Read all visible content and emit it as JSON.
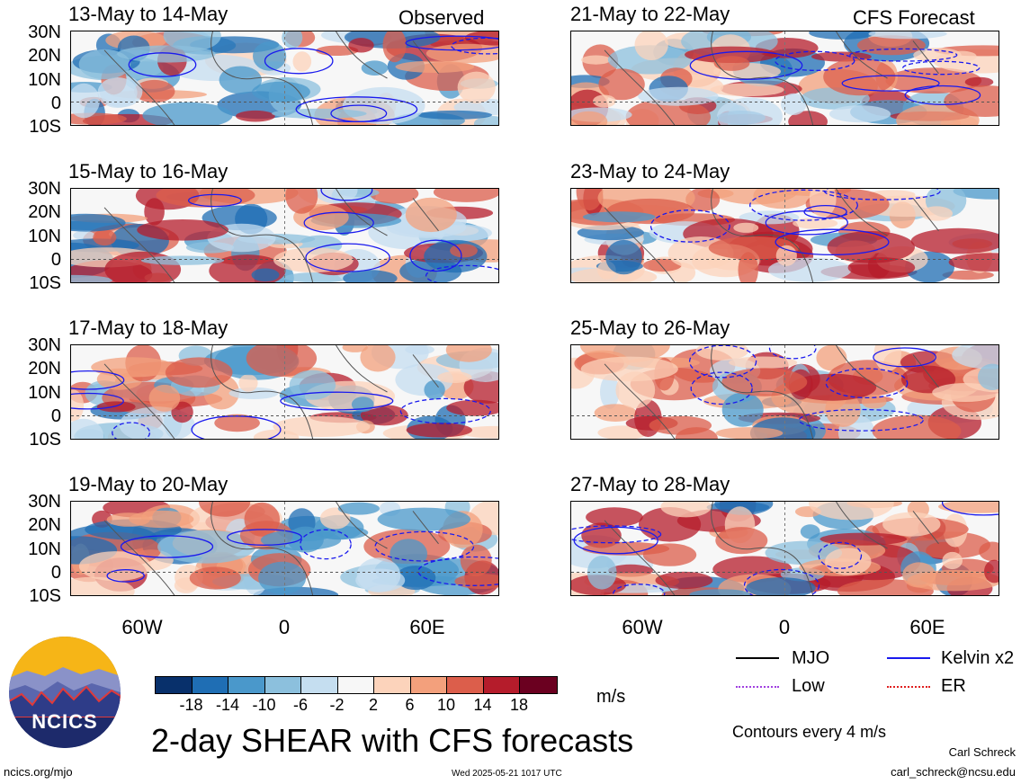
{
  "panels": {
    "left": [
      {
        "title": "13-May to 14-May",
        "tag": "Observed"
      },
      {
        "title": "15-May to 16-May",
        "tag": ""
      },
      {
        "title": "17-May to 18-May",
        "tag": ""
      },
      {
        "title": "19-May to 20-May",
        "tag": ""
      }
    ],
    "right": [
      {
        "title": "21-May to 22-May",
        "tag": "CFS Forecast"
      },
      {
        "title": "23-May to 24-May",
        "tag": ""
      },
      {
        "title": "25-May to 26-May",
        "tag": ""
      },
      {
        "title": "27-May to 28-May",
        "tag": ""
      }
    ]
  },
  "axes": {
    "lat_labels": [
      "30N",
      "20N",
      "10N",
      "0",
      "10S"
    ],
    "lon_labels": [
      "60W",
      "0",
      "60E"
    ]
  },
  "colorbar": {
    "ticks": [
      "-18",
      "-14",
      "-10",
      "-6",
      "-2",
      "2",
      "6",
      "10",
      "14",
      "18"
    ],
    "colors": [
      "#08306b",
      "#1f6eb4",
      "#4a98cb",
      "#8cc0dd",
      "#c5def0",
      "#f7f7f7",
      "#fcd3bb",
      "#f3a07c",
      "#dc5e4b",
      "#b51c2b",
      "#6b0020"
    ],
    "units": "m/s"
  },
  "title": "2-day SHEAR with CFS forecasts",
  "legend": {
    "items": [
      {
        "label": "MJO",
        "color": "#000000",
        "style": "solid"
      },
      {
        "label": "Kelvin x2",
        "color": "#1a1aee",
        "style": "solid"
      },
      {
        "label": "Low",
        "color": "#a040e0",
        "style": "dotted"
      },
      {
        "label": "ER",
        "color": "#e02020",
        "style": "dotted"
      }
    ],
    "note": "Contours every 4 m/s"
  },
  "footer": {
    "site": "ncics.org/mjo",
    "timestamp": "Wed 2025-05-21 1017 UTC",
    "author": "Carl Schreck",
    "email": "carl_schreck@ncsu.edu"
  },
  "logo": {
    "text": "NCICS"
  }
}
